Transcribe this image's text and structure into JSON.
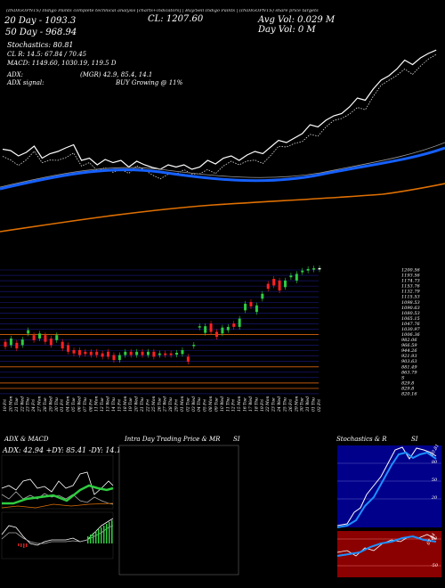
{
  "header": {
    "ticker_date": "(INDIGOPNTS) Indigo Paints  complete technical analysis [charts+indicators]  | Buy/Sell Indigo Paints | (INDIGOPNTS) share price targets",
    "line1_left": "20 Day - 1093.3",
    "line1_cl": "CL: 1207.60",
    "line1_vol": "Avg Vol: 0.029 M",
    "line2_left": "50 Day - 968.94",
    "line2_vol": "Day Vol: 0  M",
    "stoch": "Stochastics: 80.81",
    "cl_r": "CL R: 14.5: 67.84  / 70.45",
    "macd": "MACD: 1149.60,  1030.19,  119.5 D",
    "adx": "ADX:",
    "adx_vals": "(MGR) 42.9,  85.4,  14.1",
    "adx_signal": "ADX  signal:",
    "signal_val": "BUY Growing @ 11%"
  },
  "colors": {
    "background": "#000000",
    "price_line": "#ffffff",
    "ma_blue": "#1560ff",
    "ma_orange": "#e07000",
    "up_candle": "#2ecc40",
    "down_candle": "#ff2020",
    "grid_blue": "#1a1a8a",
    "orange_level": "#c0560a",
    "stoch_panel": "#00008b",
    "macd_panel": "#8b0000"
  },
  "price_levels": [
    "1200.56",
    "1193.56",
    "1174.73",
    "1153.76",
    "1132.79",
    "1115.53",
    "1098.53",
    "1090.63",
    "1080.53",
    "1065.15",
    "1047.76",
    "1030.97",
    "1006.36",
    "982.06",
    "966.59",
    "944.26",
    "921.93",
    "903.63",
    "881.49",
    "863.79",
    "S",
    "829.8",
    "829.8",
    "820.16"
  ],
  "dates": [
    "19 Fri",
    "20 Mon",
    "21 Tue",
    "22 Wed",
    "23 Thu",
    "24 Fri",
    "27 Mon",
    "28 Tue",
    "29 Wed",
    "30 Thu",
    "01 Fri",
    "04 Mon",
    "05 Tue",
    "06 Wed",
    "07 Thu",
    "08 Fri",
    "11 Mon",
    "12 Tue",
    "13 Wed",
    "14 Thu",
    "15 Fri",
    "18 Mon",
    "19 Tue",
    "20 Wed",
    "21 Thu",
    "22 Fri",
    "25 Mon",
    "26 Tue",
    "27 Wed",
    "28 Thu",
    "29 Fri",
    "01 Mon",
    "02 Tue",
    "03 Wed",
    "04 Thu",
    "05 Fri",
    "08 Mon",
    "09 Tue",
    "10 Wed",
    "11 Thu",
    "12 Fri",
    "15 Mon",
    "16 Tue",
    "17 Wed",
    "18 Thu",
    "19 Fri",
    "22 Mon",
    "23 Tue",
    "24 Wed",
    "25 Thu",
    "26 Fri",
    "29 Mon",
    "30 Tue",
    "31 Wed",
    "01 Thu",
    "02 Fri"
  ],
  "sub_panels": {
    "adx_title": "ADX  & MACD",
    "adx_vals": "ADX: 42.94  +DY: 85.41  -DY: 14.13",
    "intraday_title": "Intra Day Trading Price  & MR",
    "intraday_si": "SI",
    "stoch_title": "Stochastics & R",
    "stoch_si": "SI",
    "stoch_levels": [
      "80",
      "50",
      "20"
    ],
    "macd_levels": [
      "50",
      "-50"
    ],
    "stoch_readout": "80.81",
    "macd_readout": "67.84"
  },
  "chart_data": {
    "type": "line",
    "title": "",
    "xlabel": "",
    "ylabel": "",
    "ylim": [
      820,
      1200
    ],
    "series": [
      {
        "values": [
          985,
          982,
          970,
          978,
          992,
          965,
          975,
          980,
          988,
          995,
          960,
          965,
          950,
          962,
          955,
          960,
          945,
          958,
          950,
          944,
          940,
          950,
          945,
          950,
          940,
          945,
          960,
          952,
          965,
          970,
          960,
          972,
          980,
          975,
          990,
          1005,
          1000,
          1010,
          1020,
          1040,
          1035,
          1050,
          1060,
          1065,
          1080,
          1100,
          1095,
          1120,
          1140,
          1150,
          1165,
          1185,
          1175,
          1190,
          1200,
          1207.6
        ]
      }
    ],
    "candles": [
      {
        "o": 985,
        "c": 970
      },
      {
        "o": 975,
        "c": 995
      },
      {
        "o": 982,
        "c": 965
      },
      {
        "o": 975,
        "c": 992
      },
      {
        "o": 1010,
        "c": 1020
      },
      {
        "o": 1005,
        "c": 990
      },
      {
        "o": 995,
        "c": 1010
      },
      {
        "o": 1005,
        "c": 985
      },
      {
        "o": 995,
        "c": 975
      },
      {
        "o": 990,
        "c": 1005
      },
      {
        "o": 985,
        "c": 965
      },
      {
        "o": 975,
        "c": 955
      },
      {
        "o": 960,
        "c": 950
      },
      {
        "o": 960,
        "c": 945
      },
      {
        "o": 955,
        "c": 948
      },
      {
        "o": 955,
        "c": 945
      },
      {
        "o": 955,
        "c": 945
      },
      {
        "o": 950,
        "c": 940
      },
      {
        "o": 955,
        "c": 940
      },
      {
        "o": 945,
        "c": 930
      },
      {
        "o": 930,
        "c": 945
      },
      {
        "o": 945,
        "c": 955
      },
      {
        "o": 955,
        "c": 945
      },
      {
        "o": 945,
        "c": 955
      },
      {
        "o": 955,
        "c": 945
      },
      {
        "o": 945,
        "c": 955
      },
      {
        "o": 955,
        "c": 940
      },
      {
        "o": 945,
        "c": 950
      },
      {
        "o": 950,
        "c": 945
      },
      {
        "o": 950,
        "c": 945
      },
      {
        "o": 946,
        "c": 952
      },
      {
        "o": 948,
        "c": 960
      },
      {
        "o": 940,
        "c": 925
      },
      {
        "o": 975,
        "c": 976
      },
      {
        "o": 1028,
        "c": 1032
      },
      {
        "o": 1012,
        "c": 1032
      },
      {
        "o": 1040,
        "c": 1015
      },
      {
        "o": 1015,
        "c": 1000
      },
      {
        "o": 1010,
        "c": 1028
      },
      {
        "o": 1020,
        "c": 1030
      },
      {
        "o": 1040,
        "c": 1030
      },
      {
        "o": 1030,
        "c": 1055
      },
      {
        "o": 1080,
        "c": 1100
      },
      {
        "o": 1105,
        "c": 1092
      },
      {
        "o": 1075,
        "c": 1095
      },
      {
        "o": 1115,
        "c": 1130
      },
      {
        "o": 1160,
        "c": 1145
      },
      {
        "o": 1175,
        "c": 1155
      },
      {
        "o": 1170,
        "c": 1140
      },
      {
        "o": 1150,
        "c": 1170
      },
      {
        "o": 1180,
        "c": 1185
      },
      {
        "o": 1170,
        "c": 1190
      },
      {
        "o": 1195,
        "c": 1200
      },
      {
        "o": 1200,
        "c": 1205
      },
      {
        "o": 1205,
        "c": 1207
      },
      {
        "o": 1207.6,
        "c": 1207.6
      }
    ]
  }
}
